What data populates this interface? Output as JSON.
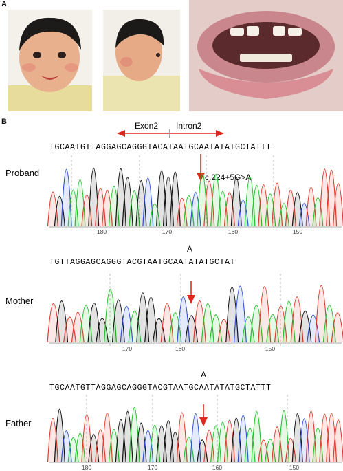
{
  "panel_a_label": "A",
  "panel_b_label": "B",
  "exon_label": "Exon2",
  "intron_label": "Intron2",
  "mutation_label": "c.224+5G>A",
  "rows": [
    {
      "label": "Proband",
      "sequence": "TGCAATGTTAGGAGCAGGGTACATAATGCAATATATGCTATTT",
      "allele": "",
      "ticks": [
        "180",
        "170",
        "160",
        "150"
      ]
    },
    {
      "label": "Mother",
      "sequence": "TGTTAGGAGCAGGGTACGTAATGCAATATATGCTAT",
      "allele": "A",
      "ticks": [
        "170",
        "160",
        "150"
      ]
    },
    {
      "label": "Father",
      "sequence": "TGCAATGTTAGGAGCAGGGTACGTAATGCAATATATGCTATTT",
      "allele": "A",
      "ticks": [
        "180",
        "170",
        "160",
        "150"
      ]
    }
  ],
  "colors": {
    "A": "#22c22a",
    "C": "#2b4fd6",
    "G": "#111111",
    "T": "#e03a2a",
    "arrow": "#e0291e"
  }
}
